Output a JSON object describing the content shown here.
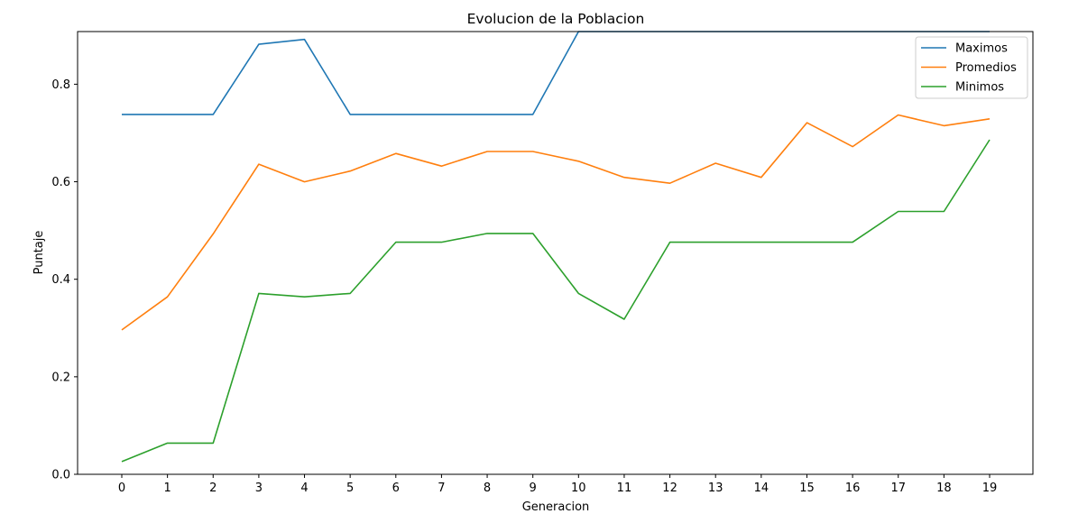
{
  "chart_data": {
    "type": "line",
    "title": "Evolucion de la Poblacion",
    "xlabel": "Generacion",
    "ylabel": "Puntaje",
    "x": [
      0,
      1,
      2,
      3,
      4,
      5,
      6,
      7,
      8,
      9,
      10,
      11,
      12,
      13,
      14,
      15,
      16,
      17,
      18,
      19
    ],
    "ylim": [
      0,
      0.908
    ],
    "yticks": [
      "0.0",
      "0.2",
      "0.4",
      "0.6",
      "0.8"
    ],
    "ytick_values": [
      0,
      0.2,
      0.4,
      0.6,
      0.8
    ],
    "grid": false,
    "legend_position": "top-right",
    "series": [
      {
        "name": "Maximos",
        "color": "#1f77b4",
        "values": [
          0.738,
          0.738,
          0.738,
          0.882,
          0.892,
          0.738,
          0.738,
          0.738,
          0.738,
          0.738,
          0.908,
          0.908,
          0.908,
          0.908,
          0.908,
          0.908,
          0.908,
          0.908,
          0.908,
          0.908
        ]
      },
      {
        "name": "Promedios",
        "color": "#ff7f0e",
        "values": [
          0.296,
          0.364,
          0.493,
          0.636,
          0.6,
          0.622,
          0.658,
          0.632,
          0.662,
          0.662,
          0.642,
          0.609,
          0.597,
          0.638,
          0.609,
          0.721,
          0.672,
          0.737,
          0.715,
          0.729
        ]
      },
      {
        "name": "Minimos",
        "color": "#2ca02c",
        "values": [
          0.026,
          0.064,
          0.064,
          0.371,
          0.364,
          0.371,
          0.476,
          0.476,
          0.494,
          0.494,
          0.371,
          0.318,
          0.476,
          0.476,
          0.476,
          0.476,
          0.476,
          0.539,
          0.539,
          0.686
        ]
      }
    ]
  }
}
